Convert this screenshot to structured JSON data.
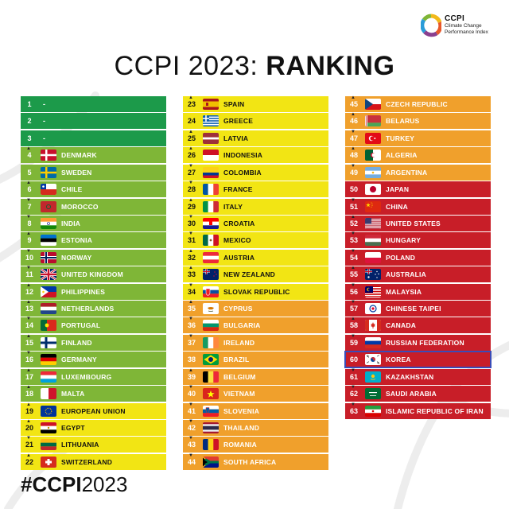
{
  "header": {
    "logo_title": "CCPI",
    "logo_line1": "Climate Change",
    "logo_line2": "Performance Index",
    "title_prefix": "CCPI 2023: ",
    "title_bold": "RANKING"
  },
  "footer": {
    "hashtag_bold": "#CCPI",
    "hashtag_rest": "2023"
  },
  "colors": {
    "dark_green": "#1c9a4a",
    "green": "#7fb637",
    "yellow": "#f2e514",
    "orange": "#f0a02c",
    "red": "#c81e28",
    "highlight": "#3a4cb8"
  },
  "columns": [
    [
      {
        "rank": "1",
        "name": "-",
        "color": "dark_green",
        "flag": "none"
      },
      {
        "rank": "2",
        "name": "-",
        "color": "dark_green",
        "flag": "none"
      },
      {
        "rank": "3",
        "name": "-",
        "color": "dark_green",
        "flag": "none"
      },
      {
        "rank": "4",
        "name": "DENMARK",
        "color": "green",
        "flag": "denmark",
        "arrow": "up"
      },
      {
        "rank": "5",
        "name": "SWEDEN",
        "color": "green",
        "flag": "sweden"
      },
      {
        "rank": "6",
        "name": "CHILE",
        "color": "green",
        "flag": "chile",
        "arrow": "up"
      },
      {
        "rank": "7",
        "name": "MOROCCO",
        "color": "green",
        "flag": "morocco",
        "arrow": "down"
      },
      {
        "rank": "8",
        "name": "INDIA",
        "color": "green",
        "flag": "india",
        "arrow": "down"
      },
      {
        "rank": "9",
        "name": "ESTONIA",
        "color": "green",
        "flag": "estonia",
        "arrow": "up"
      },
      {
        "rank": "10",
        "name": "NORWAY",
        "color": "green",
        "flag": "norway",
        "arrow": "down"
      },
      {
        "rank": "11",
        "name": "UNITED KINGDOM",
        "color": "green",
        "flag": "uk",
        "arrow": "down"
      },
      {
        "rank": "12",
        "name": "PHILIPPINES",
        "color": "green",
        "flag": "philippines",
        "arrow": "up"
      },
      {
        "rank": "13",
        "name": "NETHERLANDS",
        "color": "green",
        "flag": "netherlands",
        "arrow": "up"
      },
      {
        "rank": "14",
        "name": "PORTUGAL",
        "color": "green",
        "flag": "portugal",
        "arrow": "down"
      },
      {
        "rank": "15",
        "name": "FINLAND",
        "color": "green",
        "flag": "finland",
        "arrow": "up"
      },
      {
        "rank": "16",
        "name": "GERMANY",
        "color": "green",
        "flag": "germany",
        "arrow": "down"
      },
      {
        "rank": "17",
        "name": "LUXEMBOURG",
        "color": "green",
        "flag": "luxembourg",
        "arrow": "up"
      },
      {
        "rank": "18",
        "name": "MALTA",
        "color": "green",
        "flag": "malta",
        "arrow": "up"
      },
      {
        "rank": "19",
        "name": "EUROPEAN UNION",
        "color": "yellow",
        "flag": "eu",
        "arrow": "up"
      },
      {
        "rank": "20",
        "name": "EGYPT",
        "color": "yellow",
        "flag": "egypt",
        "arrow": "up"
      },
      {
        "rank": "21",
        "name": "LITHUANIA",
        "color": "yellow",
        "flag": "lithuania",
        "arrow": "down"
      },
      {
        "rank": "22",
        "name": "SWITZERLAND",
        "color": "yellow",
        "flag": "switzerland",
        "arrow": "up"
      }
    ],
    [
      {
        "rank": "23",
        "name": "SPAIN",
        "color": "yellow",
        "flag": "spain",
        "arrow": "up"
      },
      {
        "rank": "24",
        "name": "GREECE",
        "color": "yellow",
        "flag": "greece"
      },
      {
        "rank": "25",
        "name": "LATVIA",
        "color": "yellow",
        "flag": "latvia",
        "arrow": "up"
      },
      {
        "rank": "26",
        "name": "INDONESIA",
        "color": "yellow",
        "flag": "indonesia",
        "arrow": "up"
      },
      {
        "rank": "27",
        "name": "COLOMBIA",
        "color": "yellow",
        "flag": "colombia",
        "arrow": "down"
      },
      {
        "rank": "28",
        "name": "FRANCE",
        "color": "yellow",
        "flag": "france",
        "arrow": "down"
      },
      {
        "rank": "29",
        "name": "ITALY",
        "color": "yellow",
        "flag": "italy",
        "arrow": "up"
      },
      {
        "rank": "30",
        "name": "CROATIA",
        "color": "yellow",
        "flag": "croatia",
        "arrow": "down"
      },
      {
        "rank": "31",
        "name": "MEXICO",
        "color": "yellow",
        "flag": "mexico",
        "arrow": "down"
      },
      {
        "rank": "32",
        "name": "AUSTRIA",
        "color": "yellow",
        "flag": "austria",
        "arrow": "up"
      },
      {
        "rank": "33",
        "name": "NEW ZEALAND",
        "color": "yellow",
        "flag": "newzealand",
        "arrow": "up"
      },
      {
        "rank": "34",
        "name": "SLOVAK REPUBLIC",
        "color": "yellow",
        "flag": "slovakia",
        "arrow": "down"
      },
      {
        "rank": "35",
        "name": "CYPRUS",
        "color": "orange",
        "flag": "cyprus",
        "arrow": "up"
      },
      {
        "rank": "36",
        "name": "BULGARIA",
        "color": "orange",
        "flag": "bulgaria",
        "arrow": "down"
      },
      {
        "rank": "37",
        "name": "IRELAND",
        "color": "orange",
        "flag": "ireland",
        "arrow": "down"
      },
      {
        "rank": "38",
        "name": "BRAZIL",
        "color": "orange",
        "flag": "brazil"
      },
      {
        "rank": "39",
        "name": "BELGIUM",
        "color": "orange",
        "flag": "belgium",
        "arrow": "up"
      },
      {
        "rank": "40",
        "name": "VIETNAM",
        "color": "orange",
        "flag": "vietnam",
        "arrow": "down"
      },
      {
        "rank": "41",
        "name": "SLOVENIA",
        "color": "orange",
        "flag": "slovenia",
        "arrow": "down"
      },
      {
        "rank": "42",
        "name": "THAILAND",
        "color": "orange",
        "flag": "thailand",
        "arrow": "down"
      },
      {
        "rank": "43",
        "name": "ROMANIA",
        "color": "orange",
        "flag": "romania",
        "arrow": "down"
      },
      {
        "rank": "44",
        "name": "SOUTH AFRICA",
        "color": "orange",
        "flag": "southafrica",
        "arrow": "down"
      }
    ],
    [
      {
        "rank": "45",
        "name": "CZECH REPUBLIC",
        "color": "orange",
        "flag": "czech",
        "arrow": "up"
      },
      {
        "rank": "46",
        "name": "BELARUS",
        "color": "orange",
        "flag": "belarus",
        "arrow": "up"
      },
      {
        "rank": "47",
        "name": "TURKEY",
        "color": "orange",
        "flag": "turkey",
        "arrow": "down"
      },
      {
        "rank": "48",
        "name": "ALGERIA",
        "color": "orange",
        "flag": "algeria",
        "arrow": "up"
      },
      {
        "rank": "49",
        "name": "ARGENTINA",
        "color": "orange",
        "flag": "argentina",
        "arrow": "down"
      },
      {
        "rank": "50",
        "name": "JAPAN",
        "color": "red",
        "flag": "japan"
      },
      {
        "rank": "51",
        "name": "CHINA",
        "color": "red",
        "flag": "china",
        "arrow": "down"
      },
      {
        "rank": "52",
        "name": "UNITED STATES",
        "color": "red",
        "flag": "usa",
        "arrow": "up"
      },
      {
        "rank": "53",
        "name": "HUNGARY",
        "color": "red",
        "flag": "hungary",
        "arrow": "down"
      },
      {
        "rank": "54",
        "name": "POLAND",
        "color": "red",
        "flag": "poland",
        "arrow": "down"
      },
      {
        "rank": "55",
        "name": "AUSTRALIA",
        "color": "red",
        "flag": "australia",
        "arrow": "up"
      },
      {
        "rank": "56",
        "name": "MALAYSIA",
        "color": "red",
        "flag": "malaysia",
        "arrow": "down"
      },
      {
        "rank": "57",
        "name": "CHINESE TAIPEI",
        "color": "red",
        "flag": "taipei",
        "arrow": "down"
      },
      {
        "rank": "58",
        "name": "CANADA",
        "color": "red",
        "flag": "canada",
        "arrow": "up"
      },
      {
        "rank": "59",
        "name": "RUSSIAN FEDERATION",
        "color": "red",
        "flag": "russia",
        "arrow": "down"
      },
      {
        "rank": "60",
        "name": "KOREA",
        "color": "red",
        "flag": "korea",
        "highlight": true
      },
      {
        "rank": "61",
        "name": "KAZAKHSTAN",
        "color": "red",
        "flag": "kazakhstan",
        "arrow": "down"
      },
      {
        "rank": "62",
        "name": "SAUDI ARABIA",
        "color": "red",
        "flag": "saudi",
        "arrow": "down"
      },
      {
        "rank": "63",
        "name": "ISLAMIC REPUBLIC OF IRAN",
        "color": "red",
        "flag": "iran",
        "arrow": "down"
      }
    ]
  ]
}
